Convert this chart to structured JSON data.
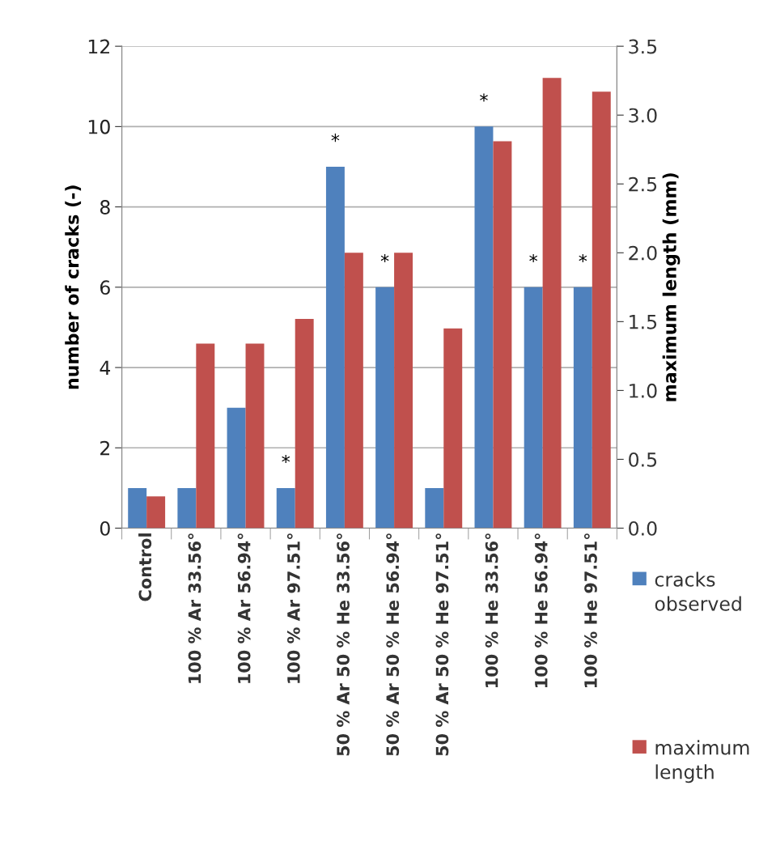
{
  "chart_data": {
    "type": "bar",
    "categories": [
      "Control",
      "100 % Ar 33.56°",
      "100 % Ar 56.94°",
      "100 % Ar 97.51°",
      "50 % Ar 50 % He 33.56°",
      "50 % Ar 50 % He 56.94°",
      "50 % Ar 50 % He 97.51°",
      "100 % He 33.56°",
      "100 % He 56.94°",
      "100 % He 97.51°"
    ],
    "series": [
      {
        "name": "cracks observed",
        "color": "#4f81bd",
        "values": [
          1,
          1,
          3,
          1,
          9,
          6,
          1,
          10,
          6,
          6
        ]
      },
      {
        "name": "maximum length",
        "color": "#c0504d",
        "axis": "y2",
        "values": [
          0.23,
          1.34,
          1.34,
          1.52,
          2.0,
          2.0,
          1.45,
          2.81,
          3.27,
          3.17
        ]
      }
    ],
    "ylabel": "number of cracks (-)",
    "y2label": "maximum length (mm)",
    "ylim": [
      0,
      12
    ],
    "yticks": [
      0,
      2,
      4,
      6,
      8,
      10,
      12
    ],
    "y2lim": [
      0,
      3.5
    ],
    "y2ticks": [
      {
        "value": 0,
        "label": "0.0"
      },
      {
        "value": 0.5,
        "label": "0.5"
      },
      {
        "value": 1,
        "label": "1.0"
      },
      {
        "value": 1.5,
        "label": "1.5"
      },
      {
        "value": 2,
        "label": "2.0"
      },
      {
        "value": 2.5,
        "label": "2.5"
      },
      {
        "value": 3,
        "label": "3.0"
      },
      {
        "value": 3.5,
        "label": "3.5"
      }
    ],
    "annotations": [
      {
        "text": "*",
        "x": "100 % Ar 97.51°",
        "y": 1
      },
      {
        "text": "*",
        "x": "50 % Ar 50 % He 33.56°",
        "y": 9
      },
      {
        "text": "*",
        "x": "50 % Ar 50 % He 56.94°",
        "y": 6
      },
      {
        "text": "*",
        "x": "100 % He 33.56°",
        "y": 10
      },
      {
        "text": "*",
        "x": "100 % He 56.94°",
        "y": 6
      },
      {
        "text": "*",
        "x": "100 % He 97.51°",
        "y": 6
      }
    ],
    "grid": "y",
    "legend": "right"
  }
}
